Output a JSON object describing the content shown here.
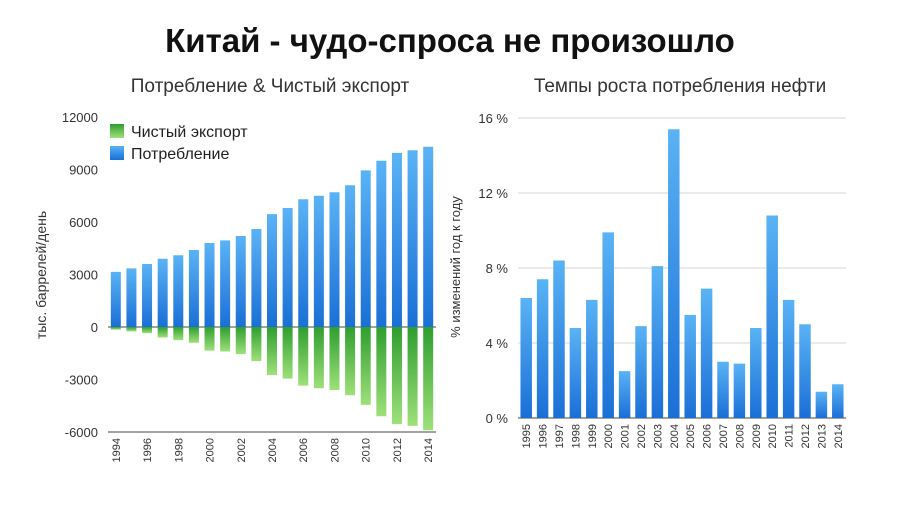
{
  "slide": {
    "title": "Китай - чудо-спроса не произошло"
  },
  "colors": {
    "blue_top": "#5ab3f5",
    "blue_bottom": "#1a6fd6",
    "green_top": "#2f9e2f",
    "green_bottom": "#9ee07a",
    "grid": "#d6d6d6",
    "axis": "#444444"
  },
  "chart_data": [
    {
      "type": "bar",
      "stacked": "diverging",
      "title": "Потребление & Чистый экспорт",
      "ylabel": "тыс. баррелей/день",
      "xlabel": "",
      "ylim": [
        -6000,
        12000
      ],
      "yticks": [
        -6000,
        -3000,
        0,
        3000,
        6000,
        9000,
        12000
      ],
      "ytick_labels": [
        "-6000",
        "-3000",
        "0",
        "3000",
        "6000",
        "9000",
        "12000"
      ],
      "legend_position": "top-left",
      "categories": [
        "1994",
        "1995",
        "1996",
        "1997",
        "1998",
        "1999",
        "2000",
        "2001",
        "2002",
        "2003",
        "2004",
        "2005",
        "2006",
        "2007",
        "2008",
        "2009",
        "2010",
        "2011",
        "2012",
        "2013",
        "2014"
      ],
      "xtick_labels": [
        "1994",
        "1996",
        "1998",
        "2000",
        "2002",
        "2004",
        "2006",
        "2008",
        "2010",
        "2012",
        "2014"
      ],
      "series": [
        {
          "name": "Чистый экспорт",
          "color": "green",
          "values": [
            -150,
            -250,
            -350,
            -600,
            -750,
            -900,
            -1350,
            -1400,
            -1550,
            -1950,
            -2750,
            -2950,
            -3350,
            -3500,
            -3600,
            -3900,
            -4450,
            -5100,
            -5550,
            -5650,
            -5900
          ]
        },
        {
          "name": "Потребление",
          "color": "blue",
          "values": [
            3150,
            3350,
            3600,
            3900,
            4100,
            4400,
            4800,
            4950,
            5200,
            5600,
            6450,
            6800,
            7300,
            7500,
            7700,
            8100,
            8950,
            9500,
            9950,
            10100,
            10300
          ]
        }
      ]
    },
    {
      "type": "bar",
      "title": "Темпы роста потребления нефти",
      "ylabel": "% изменений год к году",
      "xlabel": "",
      "ylim": [
        0,
        16
      ],
      "yticks": [
        0,
        4,
        8,
        12,
        16
      ],
      "ytick_labels": [
        "0 %",
        "4 %",
        "8 %",
        "12 %",
        "16 %"
      ],
      "categories": [
        "1995",
        "1996",
        "1997",
        "1998",
        "1999",
        "2000",
        "2001",
        "2002",
        "2003",
        "2004",
        "2005",
        "2006",
        "2007",
        "2008",
        "2009",
        "2010",
        "2011",
        "2012",
        "2013",
        "2014"
      ],
      "values": [
        6.4,
        7.4,
        8.4,
        4.8,
        6.3,
        9.9,
        2.5,
        4.9,
        8.1,
        15.4,
        5.5,
        6.9,
        3.0,
        2.9,
        4.8,
        10.8,
        6.3,
        5.0,
        1.4,
        1.8
      ]
    }
  ]
}
